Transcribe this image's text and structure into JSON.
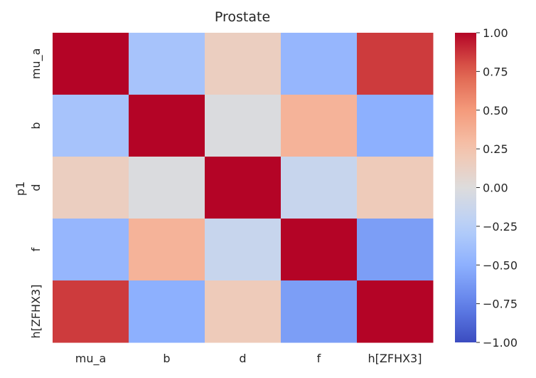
{
  "chart_data": {
    "type": "heatmap",
    "title": "Prostate",
    "ylabel": "p1",
    "xlabel": "",
    "x_categories": [
      "mu_a",
      "b",
      "d",
      "f",
      "h[ZFHX3]"
    ],
    "y_categories": [
      "mu_a",
      "b",
      "d",
      "f",
      "h[ZFHX3]"
    ],
    "values": [
      [
        1.0,
        -0.35,
        0.15,
        -0.45,
        0.85
      ],
      [
        -0.35,
        1.0,
        -0.02,
        0.35,
        -0.5
      ],
      [
        0.15,
        -0.02,
        1.0,
        -0.15,
        0.18
      ],
      [
        -0.45,
        0.35,
        -0.15,
        1.0,
        -0.6
      ],
      [
        0.85,
        -0.5,
        0.18,
        -0.6,
        1.0
      ]
    ],
    "colormap": "coolwarm",
    "vmin": -1.0,
    "vmax": 1.0,
    "colorbar_ticks": [
      "1.00",
      "0.75",
      "0.50",
      "0.25",
      "0.00",
      "−0.25",
      "−0.50",
      "−0.75",
      "−1.00"
    ],
    "colorbar_tick_values": [
      1.0,
      0.75,
      0.5,
      0.25,
      0.0,
      -0.25,
      -0.5,
      -0.75,
      -1.0
    ],
    "grid": false,
    "legend": "colorbar-right"
  }
}
